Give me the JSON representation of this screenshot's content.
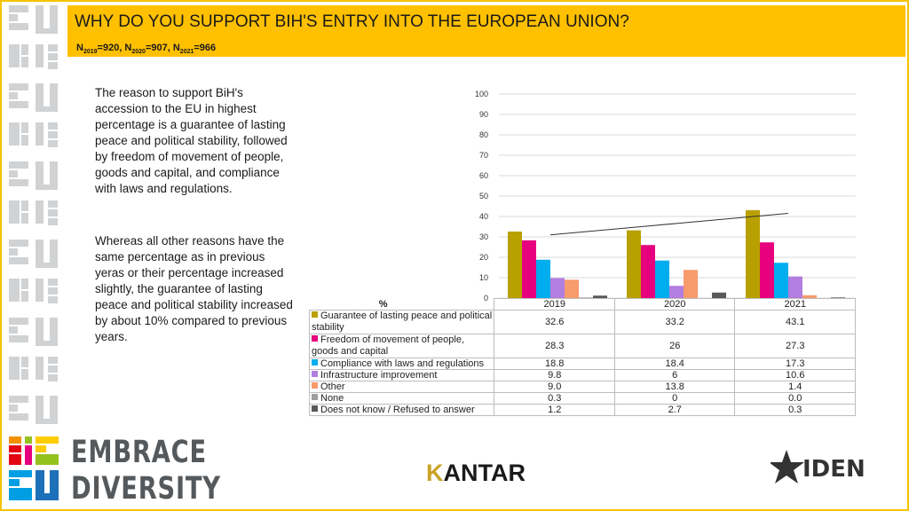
{
  "header": {
    "title": "WHY DO YOU SUPPORT BIH'S ENTRY INTO THE EUROPEAN UNION?",
    "sample": [
      {
        "label": "N",
        "sub": "2019",
        "value": "=920, "
      },
      {
        "label": "N",
        "sub": "2020",
        "value": "=907, "
      },
      {
        "label": "N",
        "sub": "2021",
        "value": "=966"
      }
    ]
  },
  "text": {
    "p1": "The reason to support BiH's accession to the EU in highest percentage is a guarantee of lasting peace and political stability, followed by freedom of movement of people, goods and capital, and compliance with laws and regulations.",
    "p2": "Whereas all other reasons have the same percentage as in previous yeras or their percentage increased slightly, the guarantee of lasting peace and political stability increased by about 10% compared to previous years."
  },
  "brand": {
    "line1": "EMBRACE",
    "line2": "DIVERSITY",
    "kantar_k": "K",
    "kantar_rest": "ANTAR",
    "ideen": "IDEN"
  },
  "chart_data": {
    "type": "bar",
    "categories": [
      "2019",
      "2020",
      "2021"
    ],
    "ylim": [
      0,
      100
    ],
    "yticks": [
      0,
      10,
      20,
      30,
      40,
      50,
      60,
      70,
      80,
      90,
      100
    ],
    "unit_label": "%",
    "series": [
      {
        "name": "Guarantee of lasting peace and political stability",
        "color": "#b8a000",
        "values": [
          32.6,
          33.2,
          43.1
        ],
        "display": [
          "32.6",
          "33.2",
          "43.1"
        ]
      },
      {
        "name": "Freedom of movement of people, goods and capital",
        "color": "#e6007e",
        "values": [
          28.3,
          26,
          27.3
        ],
        "display": [
          "28.3",
          "26",
          "27.3"
        ]
      },
      {
        "name": "Compliance with laws and regulations",
        "color": "#00aeef",
        "values": [
          18.8,
          18.4,
          17.3
        ],
        "display": [
          "18.8",
          "18.4",
          "17.3"
        ]
      },
      {
        "name": "Infrastructure improvement",
        "color": "#b27ee0",
        "values": [
          9.8,
          6,
          10.6
        ],
        "display": [
          "9.8",
          "6",
          "10.6"
        ]
      },
      {
        "name": "Other",
        "color": "#f79a6c",
        "values": [
          9.0,
          13.8,
          1.4
        ],
        "display": [
          "9.0",
          "13.8",
          "1.4"
        ]
      },
      {
        "name": "None",
        "color": "#9e9e9e",
        "values": [
          0.3,
          0,
          0.0
        ],
        "display": [
          "0.3",
          "0",
          "0.0"
        ]
      },
      {
        "name": "Does not know / Refused to answer",
        "color": "#595959",
        "values": [
          1.2,
          2.7,
          0.3
        ],
        "display": [
          "1.2",
          "2.7",
          "0.3"
        ]
      }
    ],
    "trendline": {
      "series": "Guarantee of lasting peace and political stability"
    },
    "grid": true,
    "legend": "data-table"
  }
}
